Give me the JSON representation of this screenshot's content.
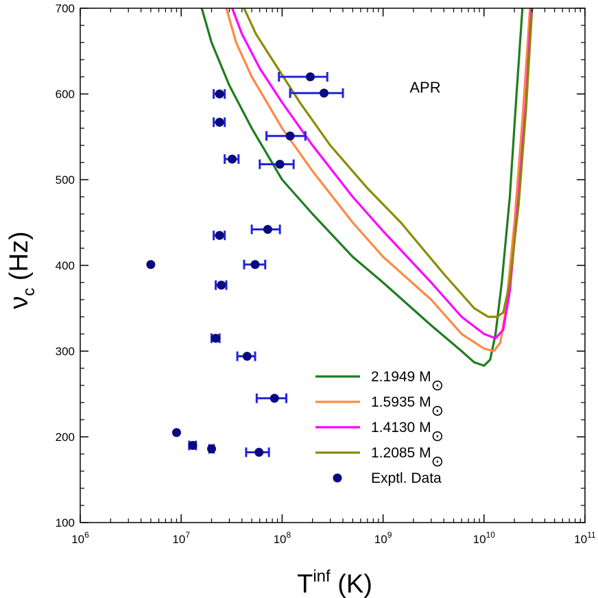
{
  "chart_data": {
    "type": "line",
    "title": "",
    "annotation": "APR",
    "xlabel": {
      "main": "T",
      "sup": "inf",
      "unit": " (K)"
    },
    "ylabel": {
      "main": "ν",
      "sub": "c",
      "unit": " (Hz)"
    },
    "x_scale": "log",
    "xlim": [
      1000000,
      100000000000
    ],
    "ylim": [
      100,
      700
    ],
    "x_ticks": [
      {
        "value": 1000000,
        "base": "10",
        "exp": "6"
      },
      {
        "value": 10000000,
        "base": "10",
        "exp": "7"
      },
      {
        "value": 100000000,
        "base": "10",
        "exp": "8"
      },
      {
        "value": 1000000000,
        "base": "10",
        "exp": "9"
      },
      {
        "value": 10000000000,
        "base": "10",
        "exp": "10"
      },
      {
        "value": 100000000000,
        "base": "10",
        "exp": "11"
      }
    ],
    "y_ticks": [
      100,
      200,
      300,
      400,
      500,
      600,
      700
    ],
    "grid": false,
    "legend_position": "bottom-right",
    "series": [
      {
        "name": "2.1949 M",
        "legend_symbol": "⊙",
        "color": "#1e7d1e",
        "points": [
          [
            16000000,
            700
          ],
          [
            20000000,
            660
          ],
          [
            30000000,
            610
          ],
          [
            50000000,
            560
          ],
          [
            100000000,
            500
          ],
          [
            200000000,
            460
          ],
          [
            500000000,
            410
          ],
          [
            1000000000,
            380
          ],
          [
            3000000000,
            330
          ],
          [
            6000000000,
            300
          ],
          [
            8000000000,
            287
          ],
          [
            10000000000,
            283
          ],
          [
            11500000000,
            290
          ],
          [
            13000000000,
            320
          ],
          [
            15000000000,
            380
          ],
          [
            18000000000,
            480
          ],
          [
            21000000000,
            600
          ],
          [
            24000000000,
            700
          ]
        ]
      },
      {
        "name": "1.5935 M",
        "legend_symbol": "⊙",
        "color": "#ff8844",
        "points": [
          [
            28000000,
            700
          ],
          [
            35000000,
            660
          ],
          [
            50000000,
            620
          ],
          [
            100000000,
            560
          ],
          [
            200000000,
            510
          ],
          [
            500000000,
            450
          ],
          [
            1000000000,
            410
          ],
          [
            3000000000,
            360
          ],
          [
            6000000000,
            320
          ],
          [
            10000000000,
            303
          ],
          [
            12500000000,
            300
          ],
          [
            14500000000,
            310
          ],
          [
            16500000000,
            350
          ],
          [
            20000000000,
            450
          ],
          [
            24000000000,
            570
          ],
          [
            28500000000,
            700
          ]
        ]
      },
      {
        "name": "1.4130 M",
        "legend_symbol": "⊙",
        "color": "#ff00ff",
        "points": [
          [
            32000000,
            700
          ],
          [
            40000000,
            670
          ],
          [
            60000000,
            630
          ],
          [
            100000000,
            590
          ],
          [
            200000000,
            540
          ],
          [
            500000000,
            480
          ],
          [
            1000000000,
            440
          ],
          [
            3000000000,
            380
          ],
          [
            6000000000,
            340
          ],
          [
            10000000000,
            320
          ],
          [
            13000000000,
            315
          ],
          [
            15500000000,
            325
          ],
          [
            18000000000,
            370
          ],
          [
            22000000000,
            480
          ],
          [
            26000000000,
            590
          ],
          [
            29500000000,
            700
          ]
        ]
      },
      {
        "name": "1.2085 M",
        "legend_symbol": "⊙",
        "color": "#8b8b00",
        "points": [
          [
            42000000,
            700
          ],
          [
            55000000,
            670
          ],
          [
            80000000,
            640
          ],
          [
            150000000,
            590
          ],
          [
            300000000,
            540
          ],
          [
            700000000,
            490
          ],
          [
            1500000000,
            450
          ],
          [
            4000000000,
            390
          ],
          [
            8000000000,
            350
          ],
          [
            11000000000,
            340
          ],
          [
            13500000000,
            340
          ],
          [
            15500000000,
            345
          ],
          [
            18000000000,
            380
          ],
          [
            22000000000,
            470
          ],
          [
            26000000000,
            580
          ],
          [
            30000000000,
            700
          ]
        ]
      },
      {
        "name": "Exptl. Data",
        "type": "scatter",
        "color": "#0a0a80",
        "errorbar_color": "#2222dd",
        "points": [
          {
            "x": 190000000,
            "y": 620,
            "xerr": [
              93000000,
              280000000
            ]
          },
          {
            "x": 260000000,
            "y": 601,
            "xerr": [
              120000000,
              400000000
            ]
          },
          {
            "x": 24000000,
            "y": 600,
            "xerr": [
              21000000,
              27000000
            ]
          },
          {
            "x": 24000000,
            "y": 567,
            "xerr": [
              21000000,
              27000000
            ]
          },
          {
            "x": 120000000,
            "y": 551,
            "xerr": [
              70000000,
              170000000
            ]
          },
          {
            "x": 32000000,
            "y": 524,
            "xerr": [
              27000000,
              37000000
            ]
          },
          {
            "x": 95000000,
            "y": 518,
            "xerr": [
              60000000,
              130000000
            ]
          },
          {
            "x": 72000000,
            "y": 442,
            "xerr": [
              50000000,
              95000000
            ]
          },
          {
            "x": 24000000,
            "y": 435,
            "xerr": [
              21000000,
              27000000
            ]
          },
          {
            "x": 5000000,
            "y": 401
          },
          {
            "x": 54000000,
            "y": 401,
            "xerr": [
              42000000,
              68000000
            ]
          },
          {
            "x": 25000000,
            "y": 377,
            "xerr": [
              22000000,
              28000000
            ]
          },
          {
            "x": 22000000,
            "y": 315,
            "xerr": [
              20000000,
              24000000
            ]
          },
          {
            "x": 45000000,
            "y": 294,
            "xerr": [
              36000000,
              54000000
            ]
          },
          {
            "x": 84000000,
            "y": 245,
            "xerr": [
              56000000,
              110000000
            ]
          },
          {
            "x": 9000000,
            "y": 205
          },
          {
            "x": 13000000,
            "y": 190,
            "xerr": [
              12000000,
              14000000
            ]
          },
          {
            "x": 20000000,
            "y": 186,
            "xerr": [
              19000000,
              21000000
            ]
          },
          {
            "x": 59000000,
            "y": 182,
            "xerr": [
              44000000,
              74000000
            ]
          }
        ]
      }
    ]
  }
}
